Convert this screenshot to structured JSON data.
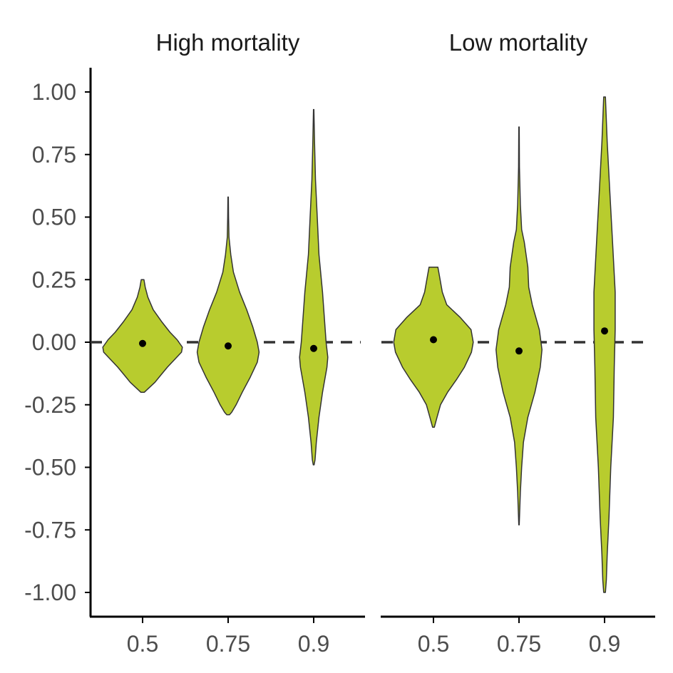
{
  "chart_data": {
    "type": "violin",
    "colors": {
      "violin_fill": "#b8cc2e",
      "violin_stroke": "#333333",
      "mean_point": "#000000",
      "reference_line": "#333333",
      "axis": "#000000"
    },
    "y_ticks": [
      "1.00",
      "0.75",
      "0.50",
      "0.25",
      "0.00",
      "-0.25",
      "-0.50",
      "-0.75",
      "-1.00"
    ],
    "y_tick_values": [
      1,
      0.75,
      0.5,
      0.25,
      0,
      -0.25,
      -0.5,
      -0.75,
      -1
    ],
    "ylim": [
      -1.1,
      1.1
    ],
    "reference_line": {
      "y": 0,
      "style": "dashed"
    },
    "grid": false,
    "legend": "none",
    "facets": [
      {
        "title": "High mortality",
        "categories": [
          "0.5",
          "0.75",
          "0.9"
        ],
        "violins": [
          {
            "x": "0.5",
            "mean": -0.005,
            "max": 0.25,
            "min": -0.2,
            "profile": [
              [
                0.25,
                0.03
              ],
              [
                0.22,
                0.06
              ],
              [
                0.18,
                0.12
              ],
              [
                0.13,
                0.24
              ],
              [
                0.08,
                0.44
              ],
              [
                0.04,
                0.62
              ],
              [
                0.01,
                0.78
              ],
              [
                -0.02,
                0.9
              ],
              [
                -0.04,
                0.88
              ],
              [
                -0.07,
                0.72
              ],
              [
                -0.1,
                0.56
              ],
              [
                -0.13,
                0.42
              ],
              [
                -0.16,
                0.28
              ],
              [
                -0.19,
                0.1
              ],
              [
                -0.2,
                0.04
              ]
            ]
          },
          {
            "x": "0.75",
            "mean": -0.015,
            "max": 0.58,
            "min": -0.29,
            "profile": [
              [
                0.58,
                0.005
              ],
              [
                0.5,
                0.01
              ],
              [
                0.42,
                0.02
              ],
              [
                0.35,
                0.06
              ],
              [
                0.28,
                0.12
              ],
              [
                0.2,
                0.26
              ],
              [
                0.13,
                0.42
              ],
              [
                0.06,
                0.56
              ],
              [
                0.0,
                0.66
              ],
              [
                -0.04,
                0.7
              ],
              [
                -0.08,
                0.66
              ],
              [
                -0.14,
                0.5
              ],
              [
                -0.2,
                0.32
              ],
              [
                -0.25,
                0.18
              ],
              [
                -0.28,
                0.08
              ],
              [
                -0.29,
                0.03
              ]
            ]
          },
          {
            "x": "0.9",
            "mean": -0.025,
            "max": 0.93,
            "min": -0.49,
            "profile": [
              [
                0.93,
                0.005
              ],
              [
                0.8,
                0.02
              ],
              [
                0.65,
                0.04
              ],
              [
                0.5,
                0.08
              ],
              [
                0.35,
                0.12
              ],
              [
                0.2,
                0.2
              ],
              [
                0.1,
                0.24
              ],
              [
                0.0,
                0.28
              ],
              [
                -0.06,
                0.32
              ],
              [
                -0.1,
                0.3
              ],
              [
                -0.2,
                0.2
              ],
              [
                -0.3,
                0.12
              ],
              [
                -0.4,
                0.06
              ],
              [
                -0.47,
                0.03
              ],
              [
                -0.49,
                0.01
              ]
            ]
          }
        ]
      },
      {
        "title": "Low mortality",
        "categories": [
          "0.5",
          "0.75",
          "0.9"
        ],
        "violins": [
          {
            "x": "0.5",
            "mean": 0.01,
            "max": 0.3,
            "min": -0.34,
            "profile": [
              [
                0.3,
                0.1
              ],
              [
                0.26,
                0.14
              ],
              [
                0.2,
                0.2
              ],
              [
                0.15,
                0.3
              ],
              [
                0.1,
                0.6
              ],
              [
                0.05,
                0.85
              ],
              [
                0.0,
                0.9
              ],
              [
                -0.04,
                0.86
              ],
              [
                -0.1,
                0.7
              ],
              [
                -0.15,
                0.52
              ],
              [
                -0.2,
                0.32
              ],
              [
                -0.25,
                0.16
              ],
              [
                -0.3,
                0.08
              ],
              [
                -0.34,
                0.02
              ]
            ]
          },
          {
            "x": "0.75",
            "mean": -0.035,
            "max": 0.86,
            "min": -0.73,
            "profile": [
              [
                0.86,
                0.005
              ],
              [
                0.7,
                0.01
              ],
              [
                0.55,
                0.03
              ],
              [
                0.45,
                0.06
              ],
              [
                0.4,
                0.12
              ],
              [
                0.3,
                0.2
              ],
              [
                0.22,
                0.22
              ],
              [
                0.15,
                0.3
              ],
              [
                0.05,
                0.46
              ],
              [
                -0.03,
                0.52
              ],
              [
                -0.1,
                0.48
              ],
              [
                -0.2,
                0.36
              ],
              [
                -0.3,
                0.2
              ],
              [
                -0.4,
                0.1
              ],
              [
                -0.5,
                0.06
              ],
              [
                -0.6,
                0.03
              ],
              [
                -0.73,
                0.005
              ]
            ]
          },
          {
            "x": "0.9",
            "mean": 0.045,
            "max": 0.98,
            "min": -1.0,
            "profile": [
              [
                0.98,
                0.02
              ],
              [
                0.8,
                0.06
              ],
              [
                0.6,
                0.12
              ],
              [
                0.4,
                0.18
              ],
              [
                0.2,
                0.24
              ],
              [
                0.05,
                0.24
              ],
              [
                -0.1,
                0.22
              ],
              [
                -0.3,
                0.2
              ],
              [
                -0.5,
                0.14
              ],
              [
                -0.7,
                0.1
              ],
              [
                -0.85,
                0.06
              ],
              [
                -0.95,
                0.04
              ],
              [
                -1.0,
                0.02
              ]
            ]
          }
        ]
      }
    ]
  }
}
